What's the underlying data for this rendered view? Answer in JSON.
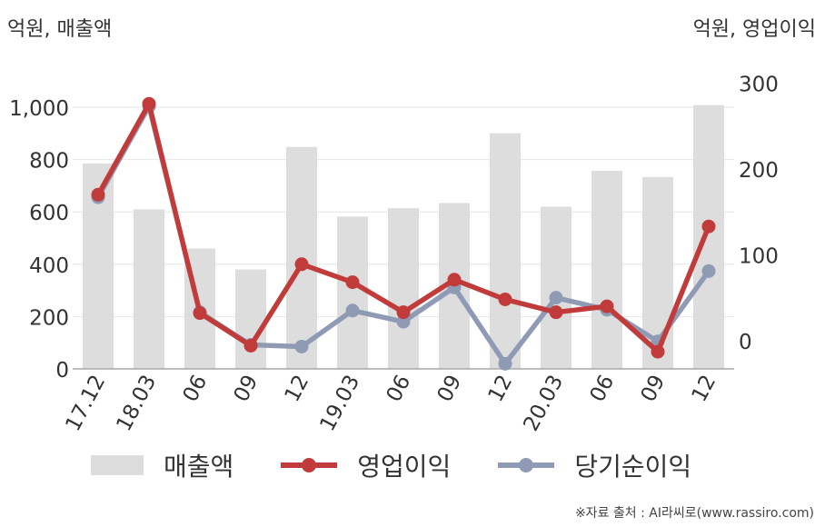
{
  "units": {
    "left": "억원, 매출액",
    "right": "억원, 영업이익"
  },
  "source": "※자료 출처 : AI라씨로(www.rassiro.com)",
  "colors": {
    "bar": "#dddddd",
    "operating": "#c23b3b",
    "net": "#8f9bb5",
    "grid": "#e6e6e6",
    "axis": "#aaaaaa",
    "text": "#333333"
  },
  "chart_data": {
    "type": "bar+line",
    "categories": [
      "17.12",
      "18.03",
      "06",
      "09",
      "12",
      "19.03",
      "06",
      "09",
      "12",
      "20.03",
      "06",
      "09",
      "12"
    ],
    "left_axis": {
      "ticks": [
        "0",
        "200",
        "400",
        "600",
        "800",
        "1,000"
      ],
      "ylim": [
        0,
        1000
      ]
    },
    "right_axis": {
      "ticks": [
        "0",
        "100",
        "200",
        "300"
      ],
      "ylim": [
        -33,
        303
      ]
    },
    "grid": true,
    "legend_position": "bottom",
    "series": [
      {
        "name": "매출액",
        "kind": "bar",
        "axis": "left",
        "values": [
          785,
          610,
          460,
          380,
          848,
          582,
          614,
          634,
          900,
          620,
          757,
          733,
          1008
        ]
      },
      {
        "name": "영업이익",
        "kind": "line",
        "axis": "right",
        "values": [
          170,
          276,
          32,
          -6,
          89,
          68,
          33,
          71,
          48,
          33,
          40,
          -13,
          133
        ]
      },
      {
        "name": "당기순이익",
        "kind": "line",
        "axis": "right",
        "values": [
          167,
          273,
          33,
          -5,
          -7,
          35,
          22,
          62,
          -27,
          50,
          36,
          -1,
          81
        ]
      }
    ]
  }
}
